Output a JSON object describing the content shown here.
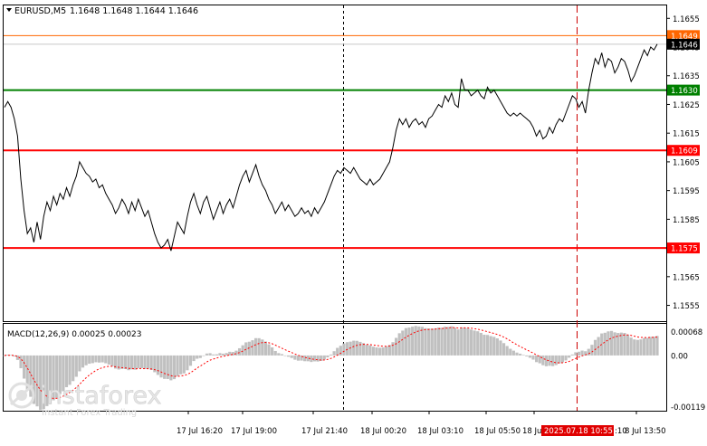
{
  "header": {
    "symbol_label": "EURUSD,M5",
    "ohlc": "1.1648 1.1648 1.1644 1.1646"
  },
  "macd": {
    "label": "MACD(12,26,9) 0.00025 0.00023",
    "axis_labels": [
      "0.00068",
      "0.00",
      "-0.00119"
    ],
    "histogram_color": "#c0c0c0",
    "signal_color": "#ff0000"
  },
  "watermark": {
    "brand": "instaforex",
    "tagline": "Instant Forex Trading"
  },
  "chart_data": {
    "type": "line",
    "series_type": "price",
    "symbol": "EURUSD",
    "timeframe": "M5",
    "ylim": [
      1.15495,
      1.16595
    ],
    "y_ticks": [
      "1.1655",
      "1.1645",
      "1.1635",
      "1.1625",
      "1.1615",
      "1.1605",
      "1.1595",
      "1.1585",
      "1.1575",
      "1.1565",
      "1.1555"
    ],
    "x_tick_labels": [
      "17 Jul 16:20",
      "17 Jul 19:00",
      "17 Jul 21:40",
      "18 Jul 00:20",
      "18 Jul 03:10",
      "18 Jul 05:50",
      "18 Jul ",
      "8 Jul 13:50"
    ],
    "current_time_label": "2025.07.18 10:55",
    "current_time_partial": ":10",
    "levels": [
      {
        "price": 1.1649,
        "label": "1.1649",
        "color": "#ff6600",
        "style": "thin"
      },
      {
        "price": 1.163,
        "label": "1.1630",
        "color": "#008000",
        "style": "thick"
      },
      {
        "price": 1.1609,
        "label": "1.1609",
        "color": "#ff0000",
        "style": "thick"
      },
      {
        "price": 1.1575,
        "label": "1.1575",
        "color": "#ff0000",
        "style": "thick"
      }
    ],
    "current_price": {
      "price": 1.1646,
      "label": "1.1646"
    },
    "line_color": "#000000",
    "grid": false,
    "values": [
      1.1624,
      1.1626,
      1.1624,
      1.162,
      1.1614,
      1.1599,
      1.1588,
      1.158,
      1.1582,
      1.1577,
      1.1584,
      1.1578,
      1.1586,
      1.1591,
      1.1588,
      1.1593,
      1.159,
      1.1594,
      1.1592,
      1.1596,
      1.1593,
      1.1597,
      1.16,
      1.1605,
      1.1603,
      1.1601,
      1.16,
      1.1598,
      1.1599,
      1.1596,
      1.1597,
      1.1594,
      1.1592,
      1.159,
      1.1587,
      1.1589,
      1.1592,
      1.159,
      1.1587,
      1.1591,
      1.1588,
      1.1592,
      1.1589,
      1.1586,
      1.1588,
      1.1584,
      1.158,
      1.1577,
      1.1575,
      1.1576,
      1.1578,
      1.1574,
      1.1579,
      1.1584,
      1.1582,
      1.158,
      1.1586,
      1.1591,
      1.1594,
      1.159,
      1.1587,
      1.1591,
      1.1593,
      1.1589,
      1.1585,
      1.1588,
      1.1591,
      1.1587,
      1.159,
      1.1592,
      1.1589,
      1.1593,
      1.1597,
      1.16,
      1.1602,
      1.1598,
      1.1601,
      1.1604,
      1.16,
      1.1597,
      1.1595,
      1.1592,
      1.159,
      1.1587,
      1.1589,
      1.1591,
      1.1588,
      1.159,
      1.1588,
      1.1586,
      1.1587,
      1.1589,
      1.1587,
      1.1588,
      1.1586,
      1.1589,
      1.1587,
      1.1589,
      1.1591,
      1.1594,
      1.1597,
      1.16,
      1.1602,
      1.1601,
      1.1603,
      1.1602,
      1.1601,
      1.1603,
      1.1601,
      1.1599,
      1.1598,
      1.1597,
      1.1599,
      1.1597,
      1.1598,
      1.1599,
      1.1601,
      1.1603,
      1.1605,
      1.161,
      1.1616,
      1.162,
      1.1618,
      1.162,
      1.1617,
      1.1619,
      1.162,
      1.1618,
      1.1619,
      1.1617,
      1.162,
      1.1621,
      1.1623,
      1.1625,
      1.1624,
      1.1628,
      1.1626,
      1.1629,
      1.1625,
      1.1624,
      1.1634,
      1.163,
      1.163,
      1.1628,
      1.1629,
      1.163,
      1.1628,
      1.1627,
      1.1631,
      1.1629,
      1.163,
      1.1628,
      1.1626,
      1.1624,
      1.1622,
      1.1621,
      1.1622,
      1.1621,
      1.1622,
      1.1621,
      1.162,
      1.1619,
      1.1617,
      1.1614,
      1.1616,
      1.1613,
      1.1614,
      1.1617,
      1.1615,
      1.1618,
      1.162,
      1.1619,
      1.1622,
      1.1625,
      1.1628,
      1.1627,
      1.1624,
      1.1626,
      1.1622,
      1.163,
      1.1636,
      1.1641,
      1.1639,
      1.1643,
      1.1638,
      1.1641,
      1.164,
      1.1636,
      1.1638,
      1.1641,
      1.164,
      1.1637,
      1.1633,
      1.1635,
      1.1638,
      1.1641,
      1.1644,
      1.1642,
      1.1645,
      1.1644,
      1.1646
    ]
  }
}
